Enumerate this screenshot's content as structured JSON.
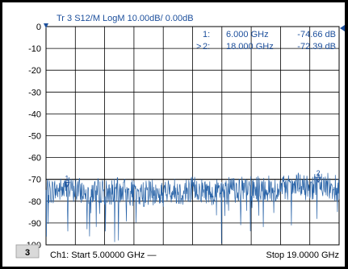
{
  "trace_header": "Tr 3  S12/M LogM 10.00dB/ 0.00dB",
  "markers": [
    {
      "id": "1:",
      "freq": "6.000 GHz",
      "value": "-74.66 dB",
      "active": false
    },
    {
      "id": "2:",
      "freq": "18.000 GHz",
      "value": "-72.39 dB",
      "active": true
    }
  ],
  "marker_active_symbol": ">",
  "channel_number": "3",
  "footer": {
    "start": "Ch1: Start  5.00000 GHz —",
    "stop": "Stop  19.0000 GHz"
  },
  "colors": {
    "trace": "#2a64a8",
    "text_blue": "#1c4f9c",
    "grid": "#000000"
  },
  "chart_data": {
    "type": "line",
    "title": "",
    "xlabel": "",
    "ylabel": "",
    "xlim": [
      5.0,
      19.0
    ],
    "ylim": [
      -100,
      0
    ],
    "yticks": [
      0,
      -10,
      -20,
      -30,
      -40,
      -50,
      -60,
      -70,
      -80,
      -90,
      -100
    ],
    "grid": true,
    "series": [
      {
        "x": [
          5.0,
          5.5,
          6.0,
          6.5,
          7.0,
          7.5,
          8.0,
          8.5,
          9.0,
          9.5,
          10.0,
          10.5,
          11.0,
          11.5,
          12.0,
          12.5,
          13.0,
          13.5,
          14.0,
          14.5,
          15.0,
          15.5,
          16.0,
          16.5,
          17.0,
          17.5,
          18.0,
          18.5,
          19.0
        ],
        "y": [
          -76,
          -75,
          -74.66,
          -75,
          -76,
          -75,
          -76,
          -75,
          -76,
          -77,
          -76,
          -77,
          -75,
          -76,
          -74,
          -75,
          -76,
          -75,
          -74,
          -75,
          -74,
          -74,
          -75,
          -74,
          -73,
          -74,
          -72.39,
          -73,
          -74
        ]
      }
    ],
    "markers": [
      {
        "label": "1",
        "x": 6.0,
        "y": -74.66
      },
      {
        "label": "2",
        "x": 18.0,
        "y": -72.39
      }
    ]
  }
}
